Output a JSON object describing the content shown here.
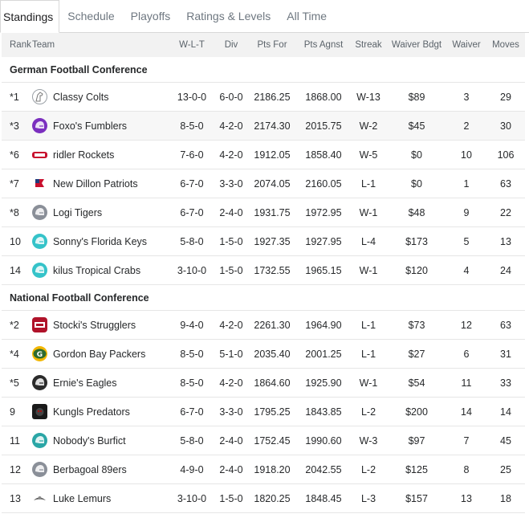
{
  "tabs": [
    "Standings",
    "Schedule",
    "Playoffs",
    "Ratings & Levels",
    "All Time"
  ],
  "columns": {
    "rank": "Rank",
    "team": "Team",
    "wlt": "W-L-T",
    "div": "Div",
    "pts_for": "Pts For",
    "pts_agnst": "Pts Agnst",
    "streak": "Streak",
    "waiver_bdgt": "Waiver Bdgt",
    "waiver": "Waiver",
    "moves": "Moves"
  },
  "conferences": [
    {
      "name": "German Football Conference",
      "teams": [
        {
          "rank": "*1",
          "name": "Classy Colts",
          "logo": "horse-icon",
          "color": "#ffffff",
          "wlt": "13-0-0",
          "div": "6-0-0",
          "pts_for": "2186.25",
          "pts_agnst": "1868.00",
          "streak": "W-13",
          "waiver_bdgt": "$89",
          "waiver": "3",
          "moves": "29"
        },
        {
          "rank": "*3",
          "name": "Foxo's Fumblers",
          "logo": "helmet-icon",
          "color": "#7b2fbf",
          "wlt": "8-5-0",
          "div": "4-2-0",
          "pts_for": "2174.30",
          "pts_agnst": "2015.75",
          "streak": "W-2",
          "waiver_bdgt": "$45",
          "waiver": "2",
          "moves": "30"
        },
        {
          "rank": "*6",
          "name": "ridler Rockets",
          "logo": "ridler-logo-icon",
          "color": "#c8102e",
          "wlt": "7-6-0",
          "div": "4-2-0",
          "pts_for": "1912.05",
          "pts_agnst": "1858.40",
          "streak": "W-5",
          "waiver_bdgt": "$0",
          "waiver": "10",
          "moves": "106"
        },
        {
          "rank": "*7",
          "name": "New Dillon Patriots",
          "logo": "flag-icon",
          "color": "#c8102e",
          "wlt": "6-7-0",
          "div": "3-3-0",
          "pts_for": "2074.05",
          "pts_agnst": "2160.05",
          "streak": "L-1",
          "waiver_bdgt": "$0",
          "waiver": "1",
          "moves": "63"
        },
        {
          "rank": "*8",
          "name": "Logi Tigers",
          "logo": "helmet-icon",
          "color": "#8a8f98",
          "wlt": "6-7-0",
          "div": "2-4-0",
          "pts_for": "1931.75",
          "pts_agnst": "1972.95",
          "streak": "W-1",
          "waiver_bdgt": "$48",
          "waiver": "9",
          "moves": "22"
        },
        {
          "rank": "10",
          "name": "Sonny's Florida Keys",
          "logo": "helmet-icon",
          "color": "#35c3c9",
          "wlt": "5-8-0",
          "div": "1-5-0",
          "pts_for": "1927.35",
          "pts_agnst": "1927.95",
          "streak": "L-4",
          "waiver_bdgt": "$173",
          "waiver": "5",
          "moves": "13"
        },
        {
          "rank": "14",
          "name": "kilus Tropical Crabs",
          "logo": "helmet-icon",
          "color": "#35c3c9",
          "wlt": "3-10-0",
          "div": "1-5-0",
          "pts_for": "1732.55",
          "pts_agnst": "1965.15",
          "streak": "W-1",
          "waiver_bdgt": "$120",
          "waiver": "4",
          "moves": "24"
        }
      ]
    },
    {
      "name": "National Football Conference",
      "teams": [
        {
          "rank": "*2",
          "name": "Stocki's Strugglers",
          "logo": "badge-icon",
          "color": "#b0132a",
          "wlt": "9-4-0",
          "div": "4-2-0",
          "pts_for": "2261.30",
          "pts_agnst": "1964.90",
          "streak": "L-1",
          "waiver_bdgt": "$73",
          "waiver": "12",
          "moves": "63"
        },
        {
          "rank": "*4",
          "name": "Gordon Bay Packers",
          "logo": "g-logo-icon",
          "color": "#2e6b30",
          "wlt": "8-5-0",
          "div": "5-1-0",
          "pts_for": "2035.40",
          "pts_agnst": "2001.25",
          "streak": "L-1",
          "waiver_bdgt": "$27",
          "waiver": "6",
          "moves": "31"
        },
        {
          "rank": "*5",
          "name": "Ernie's Eagles",
          "logo": "helmet-icon",
          "color": "#2b2b2b",
          "wlt": "8-5-0",
          "div": "4-2-0",
          "pts_for": "1864.60",
          "pts_agnst": "1925.90",
          "streak": "W-1",
          "waiver_bdgt": "$54",
          "waiver": "11",
          "moves": "33"
        },
        {
          "rank": "9",
          "name": "Kungls Predators",
          "logo": "panther-icon",
          "color": "#1a1a1a",
          "wlt": "6-7-0",
          "div": "3-3-0",
          "pts_for": "1795.25",
          "pts_agnst": "1843.85",
          "streak": "L-2",
          "waiver_bdgt": "$200",
          "waiver": "14",
          "moves": "14"
        },
        {
          "rank": "11",
          "name": "Nobody's Burfict",
          "logo": "helmet-icon",
          "color": "#2aa6a6",
          "wlt": "5-8-0",
          "div": "2-4-0",
          "pts_for": "1752.45",
          "pts_agnst": "1990.60",
          "streak": "W-3",
          "waiver_bdgt": "$97",
          "waiver": "7",
          "moves": "45"
        },
        {
          "rank": "12",
          "name": "Berbagoal 89ers",
          "logo": "helmet-icon",
          "color": "#8a8f98",
          "wlt": "4-9-0",
          "div": "2-4-0",
          "pts_for": "1918.20",
          "pts_agnst": "2042.55",
          "streak": "L-2",
          "waiver_bdgt": "$125",
          "waiver": "8",
          "moves": "25"
        },
        {
          "rank": "13",
          "name": "Luke Lemurs",
          "logo": "lemur-icon",
          "color": "#555555",
          "wlt": "3-10-0",
          "div": "1-5-0",
          "pts_for": "1820.25",
          "pts_agnst": "1848.45",
          "streak": "L-3",
          "waiver_bdgt": "$157",
          "waiver": "13",
          "moves": "18"
        }
      ]
    }
  ]
}
